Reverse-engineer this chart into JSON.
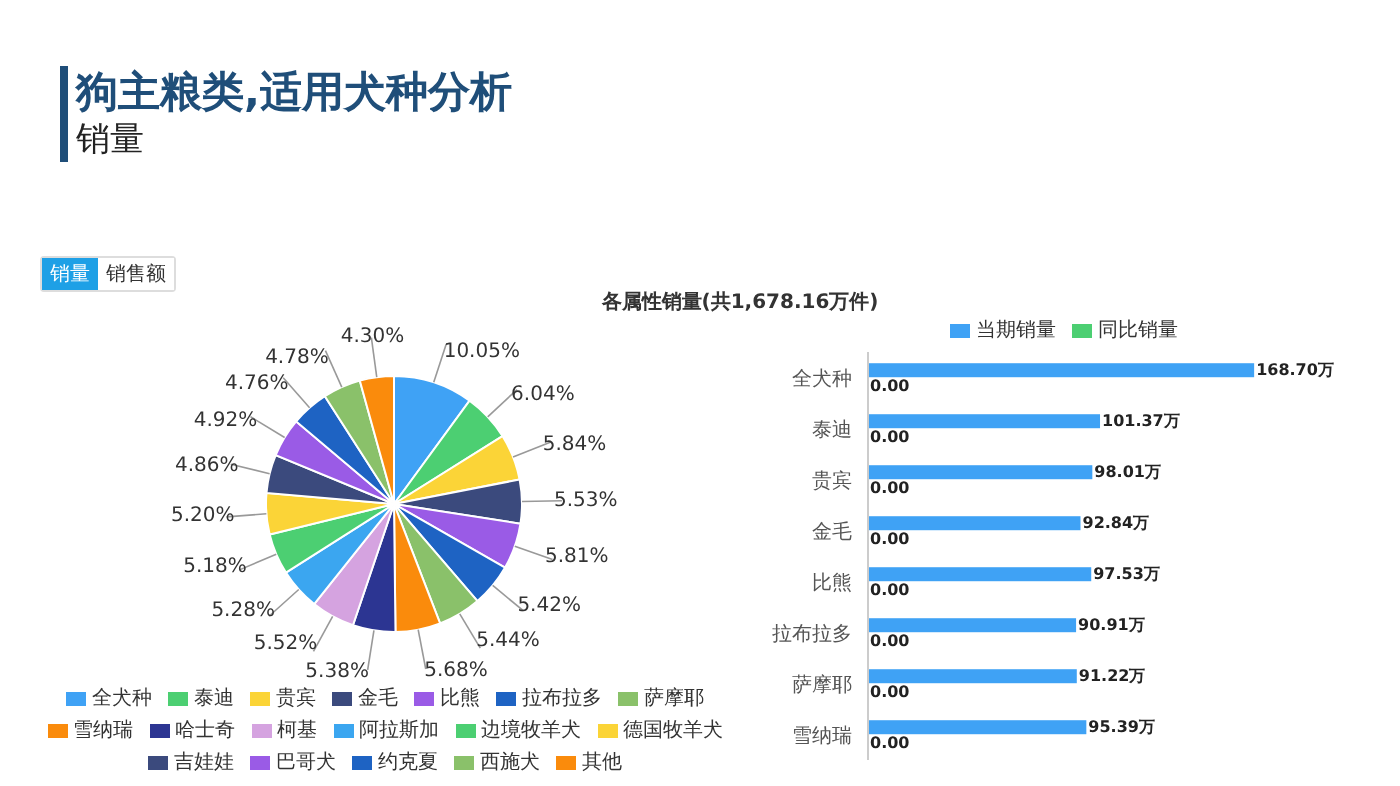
{
  "chart_data": [
    {
      "type": "pie",
      "title": "狗主粮类,适用犬种分析",
      "subtitle": "销量",
      "annotations": [
        "销量",
        "销售额",
        "各属性销量(共1,678.16万件)"
      ],
      "categories": [
        "全犬种",
        "泰迪",
        "贵宾",
        "金毛",
        "比熊",
        "拉布拉多",
        "萨摩耶",
        "雪纳瑞",
        "哈士奇",
        "柯基",
        "阿拉斯加",
        "边境牧羊犬",
        "德国牧羊犬",
        "吉娃娃",
        "巴哥犬",
        "约克夏",
        "西施犬",
        "其他"
      ],
      "values": [
        10.05,
        6.04,
        5.84,
        5.53,
        5.81,
        5.42,
        5.44,
        5.68,
        5.38,
        5.52,
        5.28,
        5.18,
        5.2,
        4.86,
        4.92,
        4.76,
        4.78,
        4.3
      ],
      "value_labels": [
        "10.05%",
        "6.04%",
        "5.84%",
        "5.53%",
        "5.81%",
        "5.42%",
        "5.44%",
        "5.68%",
        "5.38%",
        "5.52%",
        "5.28%",
        "5.18%",
        "5.20%",
        "4.86%",
        "4.92%",
        "4.76%",
        "4.78%",
        "4.30%"
      ],
      "colors": [
        "#3fa2f5",
        "#4ccf72",
        "#fbd437",
        "#3b4a7d",
        "#9a5be6",
        "#1e63c3",
        "#8ac16a",
        "#fa8b0c",
        "#2c3592",
        "#d5a3e0",
        "#3ba6f0",
        "#4ccf72",
        "#fbd437",
        "#3b4a7d",
        "#9a5be6",
        "#1e63c3",
        "#8ac16a",
        "#fa8b0c"
      ],
      "legend": "bottom"
    },
    {
      "type": "bar",
      "orientation": "horizontal",
      "categories": [
        "全犬种",
        "泰迪",
        "贵宾",
        "金毛",
        "比熊",
        "拉布拉多",
        "萨摩耶",
        "雪纳瑞"
      ],
      "series": [
        {
          "name": "当期销量",
          "color": "#3fa2f5",
          "values": [
            168.7,
            101.37,
            98.01,
            92.84,
            97.53,
            90.91,
            91.22,
            95.39
          ],
          "value_labels": [
            "168.70万",
            "101.37万",
            "98.01万",
            "92.84万",
            "97.53万",
            "90.91万",
            "91.22万",
            "95.39万"
          ]
        },
        {
          "name": "同比销量",
          "color": "#4ccf72",
          "values": [
            0,
            0,
            0,
            0,
            0,
            0,
            0,
            0
          ],
          "value_labels": [
            "0.00",
            "0.00",
            "0.00",
            "0.00",
            "0.00",
            "0.00",
            "0.00",
            "0.00"
          ]
        }
      ],
      "tick_labels": "y",
      "legend": "top"
    }
  ]
}
